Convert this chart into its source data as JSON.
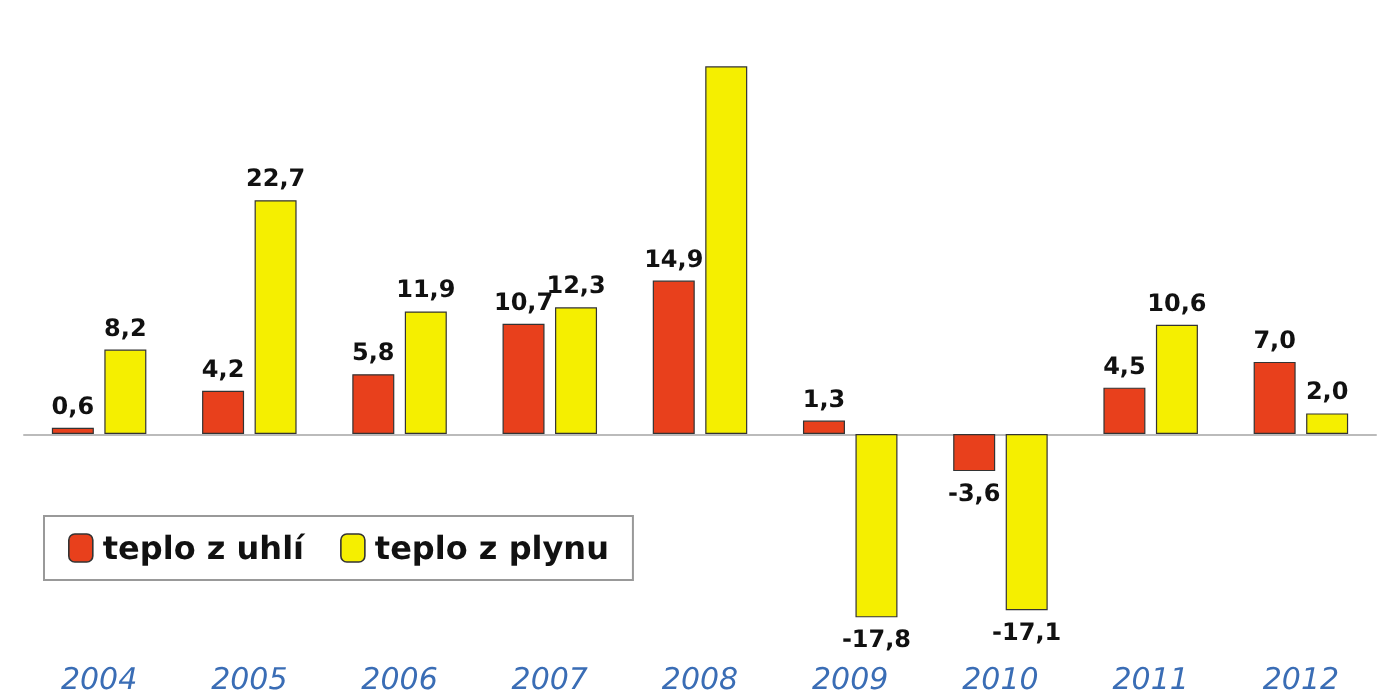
{
  "chart_data": {
    "type": "bar",
    "categories": [
      "2004",
      "2005",
      "2006",
      "2007",
      "2008",
      "2009",
      "2010",
      "2011",
      "2012"
    ],
    "series": [
      {
        "name": "teplo z uhlí",
        "color": "#e8401c",
        "values": [
          0.6,
          4.2,
          5.8,
          10.7,
          14.9,
          1.3,
          -3.6,
          4.5,
          7.0
        ],
        "value_labels": [
          "0,6",
          "4,2",
          "5,8",
          "10,7",
          "14,9",
          "1,3",
          "-3,6",
          "4,5",
          "7,0"
        ]
      },
      {
        "name": "teplo z plynu",
        "color": "#f5ef00",
        "values": [
          8.2,
          22.7,
          11.9,
          12.3,
          35.7,
          -17.8,
          -17.1,
          10.6,
          2.0
        ],
        "value_labels": [
          "8,2",
          "22,7",
          "11,9",
          "12,3",
          null,
          "-17,8",
          "-17,1",
          "10,6",
          "2,0"
        ]
      }
    ],
    "tick_labels": "x",
    "legend": "bottom left"
  }
}
